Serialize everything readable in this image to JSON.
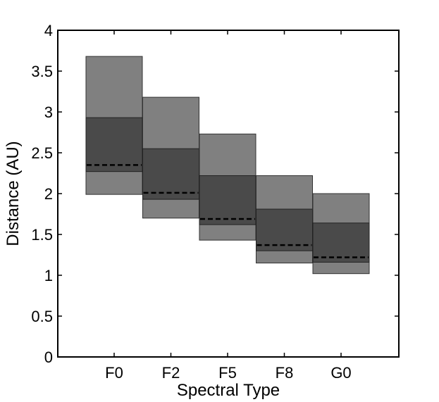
{
  "chart_data": {
    "type": "bar",
    "title": "",
    "xlabel": "Spectral Type",
    "ylabel": "Distance (AU)",
    "categories": [
      "F0",
      "F2",
      "F5",
      "F8",
      "G0"
    ],
    "ylim": [
      0,
      4
    ],
    "yticks": [
      "0",
      "0.5",
      "1",
      "1.5",
      "2",
      "2.5",
      "3",
      "3.5",
      "4"
    ],
    "outer_range": {
      "low": [
        1.99,
        1.7,
        1.43,
        1.15,
        1.02
      ],
      "high": [
        3.68,
        3.18,
        2.73,
        2.22,
        2.0
      ]
    },
    "inner_range": {
      "low": [
        2.27,
        1.93,
        1.62,
        1.3,
        1.16
      ],
      "high": [
        2.93,
        2.55,
        2.22,
        1.81,
        1.64
      ]
    },
    "median": [
      2.35,
      2.01,
      1.69,
      1.37,
      1.22
    ],
    "grid": false,
    "colors": {
      "outer": "#808080",
      "inner": "#4a4a4a",
      "median": "#000000",
      "axis": "#000000"
    }
  }
}
